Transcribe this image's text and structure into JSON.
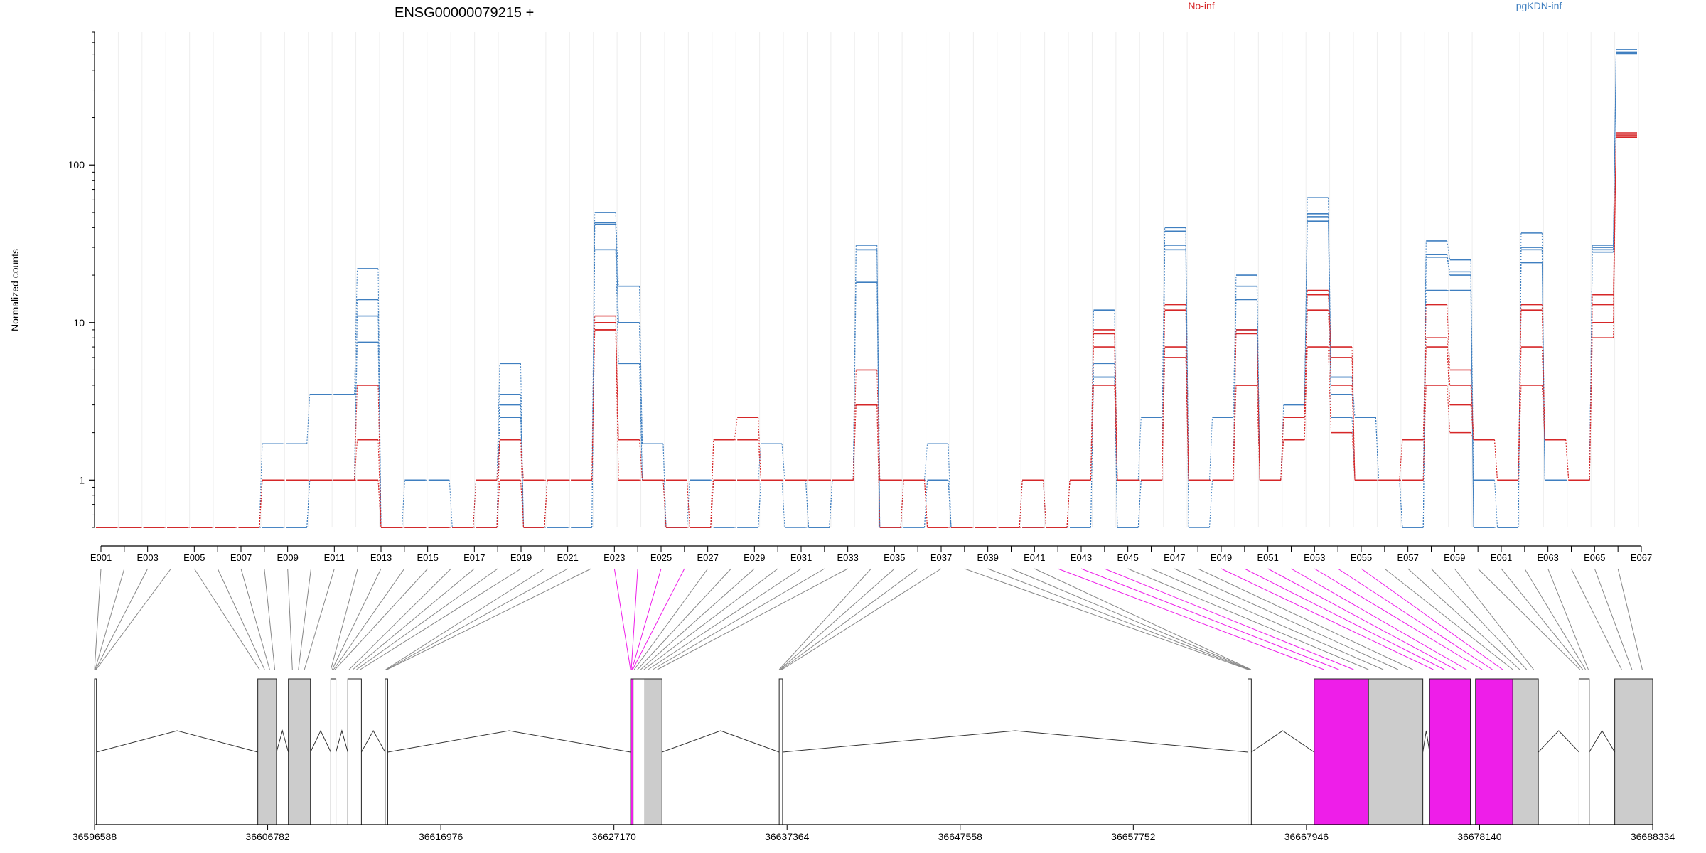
{
  "chart_data": {
    "type": "line",
    "title": "ENSG00000079215 +",
    "ylabel": "Normalized counts",
    "xlabel": "",
    "yscale": "log",
    "ylim": [
      0.5,
      700
    ],
    "yticks": [
      "1",
      "10",
      "100"
    ],
    "grid": "vertical-light",
    "legend_placement": "top-right",
    "legend": [
      {
        "label": "No-inf",
        "color": "#d62728"
      },
      {
        "label": "pgKDN-inf",
        "color": "#3f7fc0"
      }
    ],
    "exon_ticks": [
      "E001",
      "E003",
      "E005",
      "E007",
      "E009",
      "E011",
      "E013",
      "E015",
      "E017",
      "E019",
      "E021",
      "E023",
      "E025",
      "E027",
      "E029",
      "E031",
      "E033",
      "E035",
      "E037",
      "E039",
      "E041",
      "E043",
      "E045",
      "E047",
      "E049",
      "E051",
      "E053",
      "E055",
      "E057",
      "E059",
      "E061",
      "E063",
      "E065",
      "E067"
    ],
    "series": [
      {
        "group": "pgKDN-inf",
        "color": "#3f7fc0",
        "values": [
          0.5,
          0.5,
          0.5,
          0.5,
          0.5,
          0.5,
          0.5,
          1.7,
          1.7,
          3.5,
          3.5,
          22,
          0.5,
          1,
          1,
          0.5,
          1,
          5.5,
          0.5,
          1,
          1,
          50,
          17,
          1.7,
          0.5,
          1,
          1,
          1,
          1.7,
          1,
          0.5,
          1,
          31,
          1,
          1,
          1.7,
          0.5,
          0.5,
          0.5,
          1,
          0.5,
          1,
          12,
          1,
          2.5,
          40,
          1,
          2.5,
          20,
          1,
          3,
          62,
          4.5,
          2.5,
          1,
          1,
          33,
          25,
          1,
          0.5,
          37,
          1,
          1,
          31,
          540
        ]
      },
      {
        "group": "pgKDN-inf",
        "color": "#3f7fc0",
        "values": [
          0.5,
          0.5,
          0.5,
          0.5,
          0.5,
          0.5,
          0.5,
          0.5,
          0.5,
          1,
          1,
          14,
          0.5,
          0.5,
          0.5,
          0.5,
          0.5,
          3.5,
          0.5,
          0.5,
          0.5,
          43,
          10,
          1.7,
          0.5,
          0.5,
          1,
          1,
          1,
          1,
          0.5,
          1,
          29,
          0.5,
          1,
          1,
          0.5,
          0.5,
          0.5,
          0.5,
          0.5,
          0.5,
          5.5,
          0.5,
          1,
          38,
          1,
          1,
          17,
          1,
          2.5,
          49,
          4.5,
          2.5,
          1,
          0.5,
          27,
          21,
          0.5,
          0.5,
          30,
          1,
          1,
          30,
          520
        ]
      },
      {
        "group": "pgKDN-inf",
        "color": "#3f7fc0",
        "values": [
          0.5,
          0.5,
          0.5,
          0.5,
          0.5,
          0.5,
          0.5,
          0.5,
          0.5,
          1,
          1,
          11,
          0.5,
          0.5,
          0.5,
          0.5,
          0.5,
          3,
          0.5,
          0.5,
          0.5,
          42,
          10,
          1,
          0.5,
          0.5,
          0.5,
          0.5,
          1,
          1,
          0.5,
          1,
          29,
          0.5,
          0.5,
          1,
          0.5,
          0.5,
          0.5,
          0.5,
          0.5,
          0.5,
          4.5,
          0.5,
          1,
          31,
          1,
          1,
          14,
          1,
          2.5,
          47,
          3.5,
          2.5,
          1,
          0.5,
          26,
          20,
          0.5,
          0.5,
          29,
          1,
          1,
          29,
          520
        ]
      },
      {
        "group": "pgKDN-inf",
        "color": "#3f7fc0",
        "values": [
          0.5,
          0.5,
          0.5,
          0.5,
          0.5,
          0.5,
          0.5,
          0.5,
          0.5,
          1,
          1,
          7.5,
          0.5,
          0.5,
          0.5,
          0.5,
          0.5,
          2.5,
          0.5,
          0.5,
          0.5,
          29,
          5.5,
          1,
          0.5,
          0.5,
          0.5,
          0.5,
          1,
          0.5,
          0.5,
          1,
          18,
          0.5,
          0.5,
          1,
          0.5,
          0.5,
          0.5,
          0.5,
          0.5,
          0.5,
          4.5,
          0.5,
          1,
          29,
          0.5,
          1,
          9,
          1,
          2.5,
          44,
          2.5,
          1,
          1,
          0.5,
          16,
          16,
          0.5,
          0.5,
          24,
          1,
          1,
          28,
          510
        ]
      },
      {
        "group": "No-inf",
        "color": "#d62728",
        "values": [
          0.5,
          0.5,
          0.5,
          0.5,
          0.5,
          0.5,
          0.5,
          1,
          1,
          1,
          1,
          4,
          0.5,
          0.5,
          0.5,
          0.5,
          1,
          1.8,
          1,
          1,
          1,
          11,
          1.8,
          1,
          1,
          0.5,
          1.8,
          2.5,
          1,
          1,
          1,
          1,
          5,
          1,
          1,
          0.5,
          0.5,
          0.5,
          0.5,
          1,
          0.5,
          1,
          9,
          1,
          1,
          13,
          1,
          1,
          9,
          1,
          2.5,
          16,
          7,
          1,
          1,
          1.8,
          13,
          5,
          1.8,
          1,
          13,
          1.8,
          1,
          15,
          160
        ]
      },
      {
        "group": "No-inf",
        "color": "#d62728",
        "values": [
          0.5,
          0.5,
          0.5,
          0.5,
          0.5,
          0.5,
          0.5,
          1,
          1,
          1,
          1,
          1.8,
          0.5,
          0.5,
          0.5,
          0.5,
          0.5,
          1.8,
          0.5,
          1,
          1,
          10,
          1.8,
          1,
          1,
          0.5,
          1.8,
          1.8,
          1,
          1,
          1,
          1,
          3,
          1,
          1,
          0.5,
          0.5,
          0.5,
          0.5,
          1,
          0.5,
          1,
          8.5,
          1,
          1,
          12,
          1,
          1,
          8.5,
          1,
          2.5,
          15,
          6,
          1,
          1,
          1.8,
          8,
          4,
          1.8,
          1,
          12,
          1.8,
          1,
          13,
          155
        ]
      },
      {
        "group": "No-inf",
        "color": "#d62728",
        "values": [
          0.5,
          0.5,
          0.5,
          0.5,
          0.5,
          0.5,
          0.5,
          1,
          1,
          1,
          1,
          1,
          0.5,
          0.5,
          0.5,
          0.5,
          0.5,
          1,
          0.5,
          1,
          1,
          9,
          1,
          1,
          0.5,
          0.5,
          1,
          1,
          1,
          1,
          1,
          1,
          3,
          0.5,
          1,
          0.5,
          0.5,
          0.5,
          0.5,
          0.5,
          0.5,
          1,
          7,
          1,
          1,
          7,
          1,
          1,
          4,
          1,
          1.8,
          12,
          4,
          1,
          1,
          1,
          7,
          3,
          1.8,
          1,
          7,
          1.8,
          1,
          10,
          150
        ]
      },
      {
        "group": "No-inf",
        "color": "#d62728",
        "values": [
          0.5,
          0.5,
          0.5,
          0.5,
          0.5,
          0.5,
          0.5,
          1,
          1,
          1,
          1,
          1,
          0.5,
          0.5,
          0.5,
          0.5,
          0.5,
          1,
          0.5,
          1,
          1,
          9,
          1,
          1,
          0.5,
          0.5,
          1,
          1,
          1,
          1,
          1,
          1,
          3,
          0.5,
          1,
          0.5,
          0.5,
          0.5,
          0.5,
          0.5,
          0.5,
          1,
          4,
          1,
          1,
          6,
          1,
          1,
          4,
          1,
          1.8,
          7,
          2,
          1,
          1,
          1,
          4,
          2,
          1.8,
          1,
          4,
          1.8,
          1,
          8,
          150
        ]
      }
    ],
    "genome_ticks": [
      "36596588",
      "36606782",
      "36616976",
      "36627170",
      "36637364",
      "36647558",
      "36657752",
      "36667946",
      "36678140",
      "36688334"
    ],
    "gene_model": {
      "exons": [
        {
          "start": 36596588,
          "end": 36596700,
          "highlight": false
        },
        {
          "start": 36606200,
          "end": 36607300,
          "highlight": false
        },
        {
          "start": 36608000,
          "end": 36609300,
          "highlight": false
        },
        {
          "start": 36610500,
          "end": 36610800,
          "highlight": false
        },
        {
          "start": 36611500,
          "end": 36612300,
          "highlight": false
        },
        {
          "start": 36613700,
          "end": 36613850,
          "highlight": false
        },
        {
          "start": 36628150,
          "end": 36628300,
          "highlight": true
        },
        {
          "start": 36628300,
          "end": 36629000,
          "highlight": false
        },
        {
          "start": 36629000,
          "end": 36630000,
          "highlight": false
        },
        {
          "start": 36636900,
          "end": 36637100,
          "highlight": false
        },
        {
          "start": 36664500,
          "end": 36664700,
          "highlight": false
        },
        {
          "start": 36668400,
          "end": 36671600,
          "highlight": true
        },
        {
          "start": 36671600,
          "end": 36674800,
          "highlight": false
        },
        {
          "start": 36675200,
          "end": 36677600,
          "highlight": true
        },
        {
          "start": 36677900,
          "end": 36680100,
          "highlight": true
        },
        {
          "start": 36680100,
          "end": 36681600,
          "highlight": false
        },
        {
          "start": 36684000,
          "end": 36684600,
          "highlight": false
        },
        {
          "start": 36686100,
          "end": 36688334,
          "highlight": false
        }
      ],
      "highlight_color": "#ee1ee9",
      "exon_color": "#cccccc"
    }
  }
}
